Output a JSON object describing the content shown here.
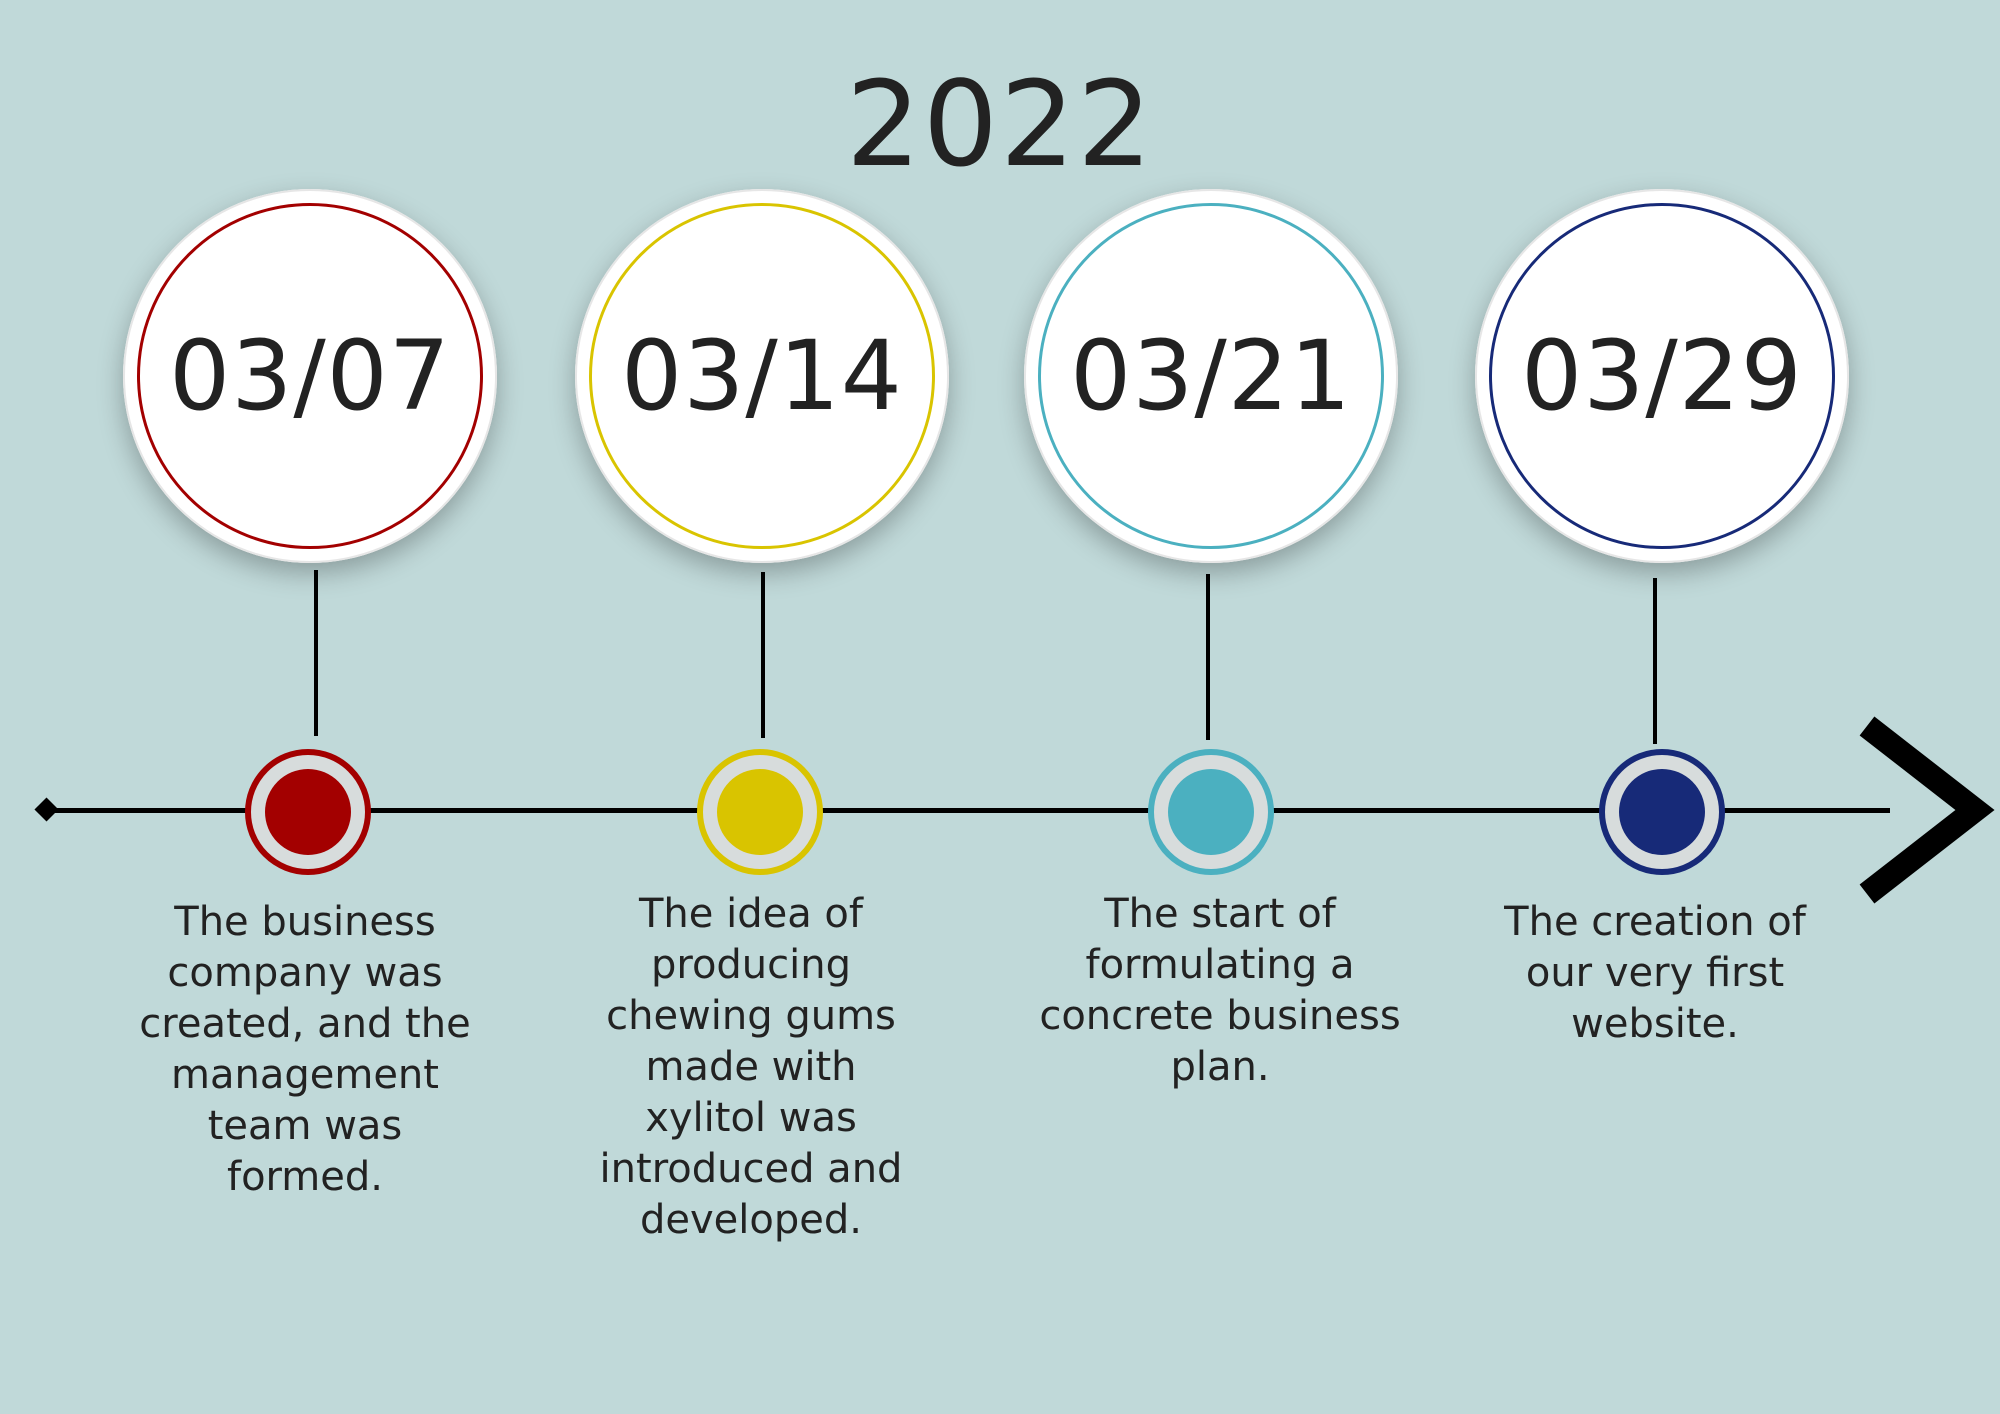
{
  "year": "2022",
  "events": [
    {
      "date": "03/07",
      "color": "#a30000",
      "description": "The business company was created, and the management team was formed."
    },
    {
      "date": "03/14",
      "color": "#d9c400",
      "description": "The idea of producing chewing gums made with xylitol was introduced and developed."
    },
    {
      "date": "03/21",
      "color": "#4bb0c0",
      "description": "The start of formulating a concrete business plan."
    },
    {
      "date": "03/29",
      "color": "#172a78",
      "description": "The creation of our very first website."
    }
  ],
  "axis": {
    "arrow": "chevron-right-icon",
    "start_marker": "diamond-icon",
    "line_color": "#000000"
  },
  "background_color": "#c0d9d9"
}
